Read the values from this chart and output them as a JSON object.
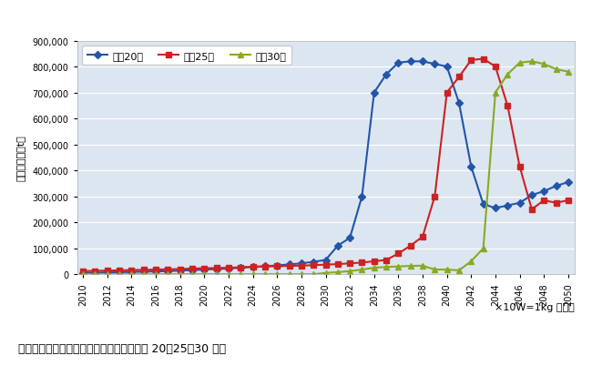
{
  "title": "",
  "ylabel": "排出見込量（t）",
  "note": "×10W=1kg で換算",
  "caption": "図　太陽電池モジュール排出見込量（寿命 20、25、30 年）",
  "legend_labels": [
    "寿命20年",
    "寿命25年",
    "寿命30年"
  ],
  "series": {
    "寿命20年": {
      "color": "#2255aa",
      "marker": "D",
      "markersize": 4,
      "years": [
        2010,
        2011,
        2012,
        2013,
        2014,
        2015,
        2016,
        2017,
        2018,
        2019,
        2020,
        2021,
        2022,
        2023,
        2024,
        2025,
        2026,
        2027,
        2028,
        2029,
        2030,
        2031,
        2032,
        2033,
        2034,
        2035,
        2036,
        2037,
        2038,
        2039,
        2040,
        2041,
        2042,
        2043,
        2044,
        2045,
        2046,
        2047,
        2048,
        2049,
        2050
      ],
      "values": [
        5000,
        6000,
        7000,
        8000,
        9000,
        10000,
        11000,
        12000,
        14000,
        16000,
        18000,
        20000,
        22000,
        25000,
        28000,
        31000,
        34000,
        38000,
        42000,
        48000,
        55000,
        110000,
        140000,
        300000,
        700000,
        770000,
        815000,
        820000,
        820000,
        810000,
        800000,
        660000,
        415000,
        270000,
        255000,
        265000,
        275000,
        305000,
        320000,
        340000,
        355000
      ]
    },
    "寿命25年": {
      "color": "#cc2222",
      "marker": "s",
      "markersize": 4,
      "years": [
        2010,
        2011,
        2012,
        2013,
        2014,
        2015,
        2016,
        2017,
        2018,
        2019,
        2020,
        2021,
        2022,
        2023,
        2024,
        2025,
        2026,
        2027,
        2028,
        2029,
        2030,
        2031,
        2032,
        2033,
        2034,
        2035,
        2036,
        2037,
        2038,
        2039,
        2040,
        2041,
        2042,
        2043,
        2044,
        2045,
        2046,
        2047,
        2048,
        2049,
        2050
      ],
      "values": [
        12000,
        13000,
        14000,
        15000,
        16000,
        17000,
        18000,
        19000,
        20000,
        22000,
        23000,
        24000,
        25000,
        27000,
        29000,
        30000,
        31000,
        32000,
        33000,
        35000,
        37000,
        39000,
        42000,
        45000,
        50000,
        55000,
        80000,
        110000,
        145000,
        300000,
        700000,
        760000,
        825000,
        830000,
        800000,
        650000,
        415000,
        250000,
        285000,
        275000,
        285000
      ]
    },
    "寿命30年": {
      "color": "#88aa22",
      "marker": "^",
      "markersize": 4,
      "years": [
        2010,
        2011,
        2012,
        2013,
        2014,
        2015,
        2016,
        2017,
        2018,
        2019,
        2020,
        2021,
        2022,
        2023,
        2024,
        2025,
        2026,
        2027,
        2028,
        2029,
        2030,
        2031,
        2032,
        2033,
        2034,
        2035,
        2036,
        2037,
        2038,
        2039,
        2040,
        2041,
        2042,
        2043,
        2044,
        2045,
        2046,
        2047,
        2048,
        2049,
        2050
      ],
      "values": [
        0,
        0,
        0,
        0,
        0,
        0,
        0,
        0,
        0,
        0,
        0,
        0,
        0,
        0,
        0,
        0,
        0,
        0,
        0,
        0,
        5000,
        8000,
        12000,
        18000,
        25000,
        28000,
        30000,
        32000,
        33000,
        18000,
        18000,
        15000,
        50000,
        100000,
        700000,
        770000,
        815000,
        820000,
        810000,
        790000,
        780000
      ]
    }
  },
  "xlim": [
    2009.5,
    2050.5
  ],
  "ylim": [
    0,
    900000
  ],
  "yticks": [
    0,
    100000,
    200000,
    300000,
    400000,
    500000,
    600000,
    700000,
    800000,
    900000
  ],
  "xticks": [
    2010,
    2012,
    2014,
    2016,
    2018,
    2020,
    2022,
    2024,
    2026,
    2028,
    2030,
    2032,
    2034,
    2036,
    2038,
    2040,
    2042,
    2044,
    2046,
    2048,
    2050
  ],
  "bg_color": "#ffffff",
  "plot_bg_color": "#dce6f1",
  "grid_color": "#ffffff",
  "linewidth": 1.5
}
